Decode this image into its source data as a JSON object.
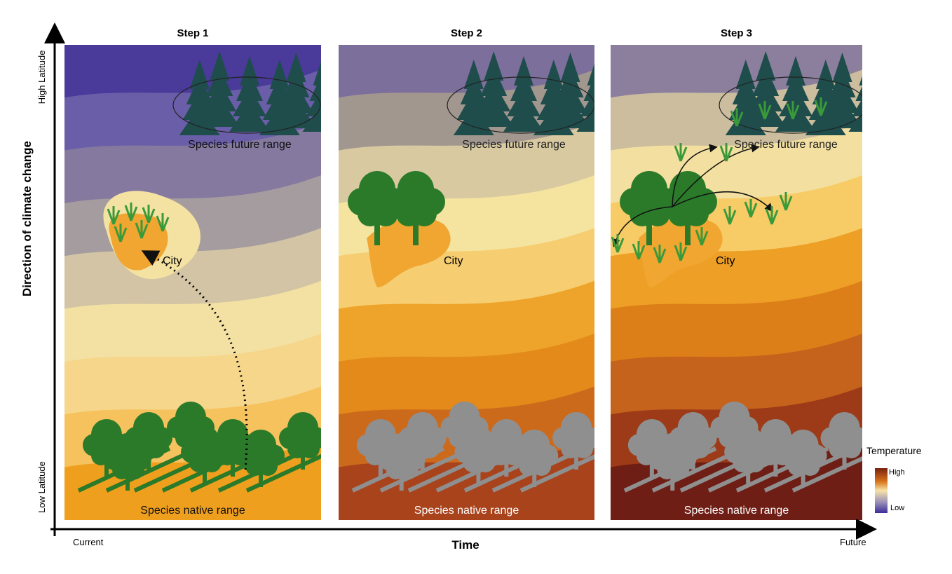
{
  "axes": {
    "y_label": "Direction of climate change",
    "y_top": "High Latitude",
    "y_bottom": "Low Latitude",
    "x_label": "Time",
    "x_left": "Current",
    "x_right": "Future"
  },
  "panels": [
    {
      "title": "Step 1",
      "future_range": "Species future range",
      "city": "City",
      "native_range": "Species native range"
    },
    {
      "title": "Step 2",
      "future_range": "Species future range",
      "city": "City",
      "native_range": "Species native range"
    },
    {
      "title": "Step 3",
      "future_range": "Species future range",
      "city": "City",
      "native_range": "Species native range"
    }
  ],
  "legend": {
    "title": "Temperature",
    "high": "High",
    "low": "Low"
  }
}
